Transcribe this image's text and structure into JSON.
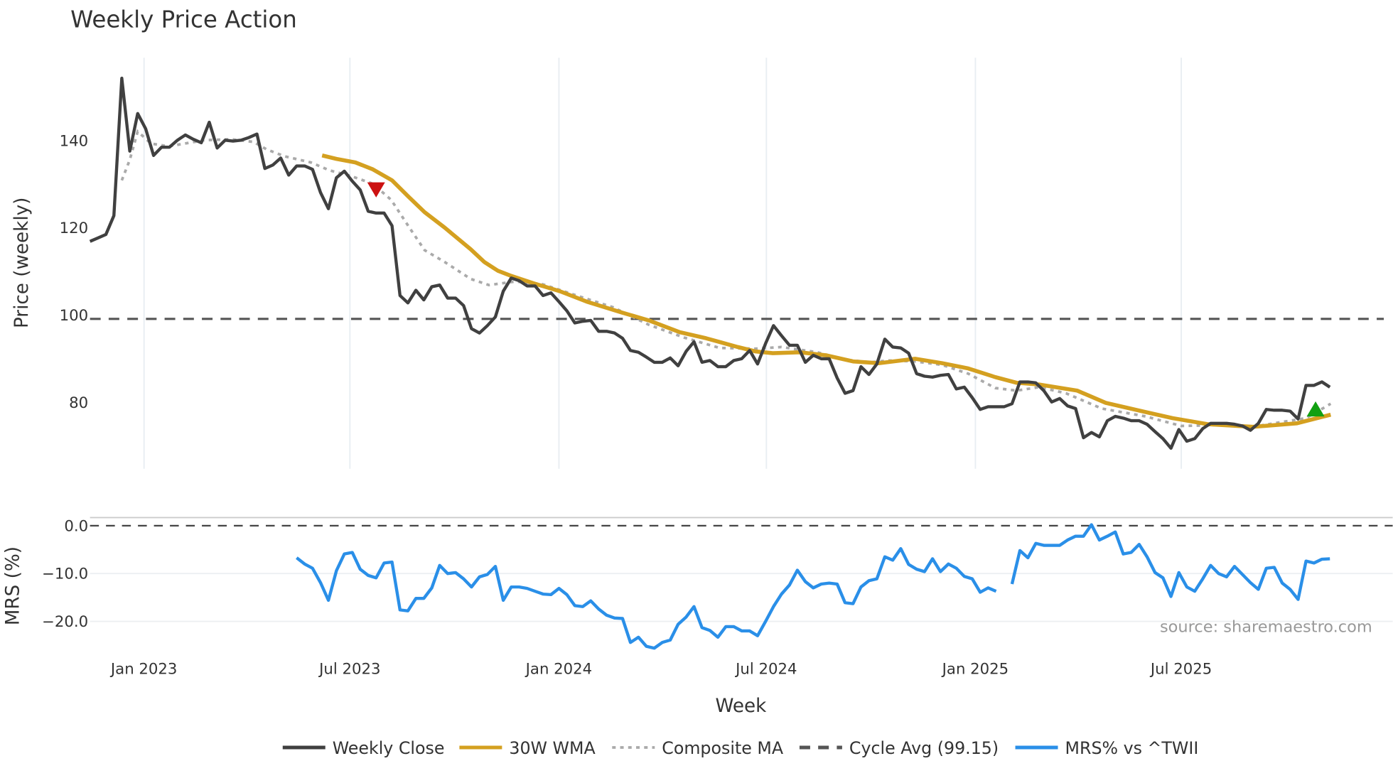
{
  "chart_data": [
    {
      "type": "line",
      "title": "Weekly Price Action",
      "xlabel": "Week",
      "ylabel": "Price (weekly)",
      "xlim_weeks": [
        0,
        163.9
      ],
      "ylim": [
        64.8,
        159
      ],
      "grid": true,
      "x_ticks": [
        {
          "week": 6.8,
          "label": "Jan 2023"
        },
        {
          "week": 32.7,
          "label": "Jul 2023"
        },
        {
          "week": 59.0,
          "label": "Jan 2024"
        },
        {
          "week": 85.1,
          "label": "Jul 2024"
        },
        {
          "week": 111.4,
          "label": "Jan 2025"
        },
        {
          "week": 137.3,
          "label": "Jul 2025"
        }
      ],
      "y_ticks": [
        {
          "value": 80,
          "label": "80"
        },
        {
          "value": 100,
          "label": "100"
        },
        {
          "value": 120,
          "label": "120"
        },
        {
          "value": 140,
          "label": "140"
        }
      ],
      "series": [
        {
          "name": "Weekly Close",
          "color": "#404040",
          "values": [
            116.9,
            117.7,
            118.5,
            122.8,
            154.3,
            137.6,
            146.2,
            142.7,
            136.6,
            138.5,
            138.5,
            140.1,
            141.3,
            140.3,
            139.5,
            144.2,
            138.3,
            140.1,
            139.9,
            140.1,
            140.7,
            141.5,
            133.6,
            134.4,
            136.0,
            132.1,
            134.2,
            134.2,
            133.4,
            128.1,
            124.4,
            131.5,
            133.0,
            130.7,
            128.7,
            123.8,
            123.4,
            123.4,
            120.5,
            104.5,
            102.8,
            105.7,
            103.5,
            106.5,
            106.9,
            103.9,
            103.9,
            102.2,
            96.9,
            95.9,
            97.6,
            99.6,
            105.5,
            108.5,
            107.9,
            106.7,
            106.7,
            104.5,
            105.1,
            103.1,
            101.0,
            98.2,
            98.6,
            98.8,
            96.3,
            96.3,
            95.9,
            94.7,
            91.9,
            91.5,
            90.4,
            89.2,
            89.2,
            90.2,
            88.4,
            91.7,
            93.9,
            89.2,
            89.6,
            88.2,
            88.2,
            89.6,
            90.0,
            91.9,
            88.8,
            93.5,
            97.6,
            95.3,
            93.1,
            93.1,
            89.2,
            90.8,
            90.0,
            90.0,
            85.6,
            82.1,
            82.7,
            88.2,
            86.4,
            88.8,
            94.5,
            92.7,
            92.5,
            91.3,
            86.6,
            86.0,
            85.8,
            86.2,
            86.4,
            83.1,
            83.5,
            81.1,
            78.4,
            79.0,
            79.0,
            79.0,
            79.7,
            84.7,
            84.7,
            84.5,
            82.7,
            80.1,
            80.9,
            79.2,
            78.6,
            71.9,
            73.1,
            72.1,
            75.8,
            76.8,
            76.4,
            75.8,
            75.8,
            75.0,
            73.3,
            71.7,
            69.5,
            73.8,
            71.1,
            71.7,
            74.0,
            75.2,
            75.2,
            75.2,
            75.0,
            74.6,
            73.6,
            75.2,
            78.4,
            78.2,
            78.2,
            78.0,
            76.2,
            83.9,
            83.9,
            84.7,
            83.5
          ]
        },
        {
          "name": "30W WMA",
          "color": "#D4A020",
          "points": [
            [
              29.2,
              136.6
            ],
            [
              31,
              135.8
            ],
            [
              33.4,
              135.0
            ],
            [
              35.6,
              133.4
            ],
            [
              38,
              130.9
            ],
            [
              40.1,
              127.1
            ],
            [
              42.1,
              123.6
            ],
            [
              44.6,
              120.1
            ],
            [
              47.9,
              115.1
            ],
            [
              49.6,
              112.2
            ],
            [
              51.3,
              110.2
            ],
            [
              53,
              109.0
            ],
            [
              55.8,
              107.3
            ],
            [
              59.1,
              105.5
            ],
            [
              62.5,
              103.1
            ],
            [
              66.9,
              100.6
            ],
            [
              70.3,
              98.8
            ],
            [
              74.2,
              96.1
            ],
            [
              77.5,
              94.7
            ],
            [
              81.5,
              92.7
            ],
            [
              83.7,
              91.7
            ],
            [
              85.9,
              91.3
            ],
            [
              89.3,
              91.5
            ],
            [
              92.6,
              90.8
            ],
            [
              96,
              89.4
            ],
            [
              99.3,
              89.0
            ],
            [
              103.8,
              90.0
            ],
            [
              107.2,
              89.0
            ],
            [
              110.5,
              87.8
            ],
            [
              113.9,
              85.8
            ],
            [
              116.6,
              84.5
            ],
            [
              119.4,
              84.1
            ],
            [
              124.2,
              82.7
            ],
            [
              127.8,
              79.9
            ],
            [
              132.8,
              77.8
            ],
            [
              136.2,
              76.4
            ],
            [
              140.7,
              75.0
            ],
            [
              146.3,
              74.4
            ],
            [
              151.8,
              75.2
            ],
            [
              156.1,
              77.2
            ]
          ]
        },
        {
          "name": "Composite MA",
          "color": "#AAAAAA",
          "points": [
            [
              4,
              130.9
            ],
            [
              5,
              135.6
            ],
            [
              6,
              142.1
            ],
            [
              7.7,
              139.3
            ],
            [
              9.9,
              138.7
            ],
            [
              14.4,
              140.1
            ],
            [
              17.8,
              140.3
            ],
            [
              20.6,
              139.7
            ],
            [
              22.2,
              138.0
            ],
            [
              24.5,
              136.4
            ],
            [
              27.8,
              135.0
            ],
            [
              30.1,
              133.2
            ],
            [
              32.8,
              131.9
            ],
            [
              35.6,
              130.1
            ],
            [
              37.9,
              126.4
            ],
            [
              40.1,
              120.3
            ],
            [
              42.1,
              114.9
            ],
            [
              44.6,
              112.2
            ],
            [
              47.9,
              108.3
            ],
            [
              50.2,
              106.9
            ],
            [
              53.5,
              107.7
            ],
            [
              56.9,
              107.1
            ],
            [
              60.2,
              105.1
            ],
            [
              65.8,
              101.8
            ],
            [
              70.3,
              97.8
            ],
            [
              74.7,
              94.9
            ],
            [
              79.2,
              92.5
            ],
            [
              83.7,
              92.3
            ],
            [
              87,
              92.7
            ],
            [
              91.5,
              91.5
            ],
            [
              94.9,
              89.8
            ],
            [
              98.2,
              89.2
            ],
            [
              100.4,
              89.6
            ],
            [
              103.8,
              89.4
            ],
            [
              107.2,
              88.6
            ],
            [
              110.5,
              86.6
            ],
            [
              113.9,
              83.3
            ],
            [
              116.6,
              82.7
            ],
            [
              119.4,
              83.5
            ],
            [
              122.8,
              82.1
            ],
            [
              127.3,
              78.6
            ],
            [
              132.8,
              76.8
            ],
            [
              137.3,
              74.6
            ],
            [
              141.8,
              74.8
            ],
            [
              146.3,
              74.4
            ],
            [
              149.6,
              75.4
            ],
            [
              153,
              76.4
            ],
            [
              156.1,
              79.7
            ]
          ]
        },
        {
          "name": "Cycle Avg (99.15)",
          "color": "#555555",
          "value": 99.15
        }
      ],
      "markers": [
        {
          "type": "sell",
          "shape": "triangle-down",
          "color": "#CC1111",
          "week": 36,
          "value": 128.8
        },
        {
          "type": "buy",
          "shape": "triangle-up",
          "color": "#11A011",
          "week": 154.2,
          "value": 78.4
        }
      ]
    },
    {
      "type": "line",
      "ylabel": "MRS (%)",
      "ylim": [
        -26.5,
        1.7
      ],
      "y_ticks": [
        {
          "value": 0,
          "label": "0.0"
        },
        {
          "value": -10,
          "label": "−10.0"
        },
        {
          "value": -20,
          "label": "−20.0"
        }
      ],
      "zero_line": 0,
      "series": [
        {
          "name": "MRS% vs ^TWII",
          "color": "#2A8FE8",
          "start_week": 26,
          "values": [
            -6.7,
            -8.0,
            -8.9,
            -11.9,
            -15.6,
            -9.4,
            -5.9,
            -5.6,
            -9.1,
            -10.4,
            -10.9,
            -7.8,
            -7.6,
            -17.6,
            -17.8,
            -15.2,
            -15.2,
            -13.0,
            -8.3,
            -10.0,
            -9.8,
            -11.1,
            -12.8,
            -10.7,
            -10.2,
            -8.5,
            -15.6,
            -12.8,
            -12.8,
            -13.1,
            -13.7,
            -14.3,
            -14.4,
            -13.1,
            -14.4,
            -16.7,
            -16.9,
            -15.7,
            -17.4,
            -18.7,
            -19.3,
            -19.4,
            -24.4,
            -23.3,
            -25.2,
            -25.6,
            -24.4,
            -23.9,
            -20.6,
            -19.1,
            -16.9,
            -21.3,
            -21.9,
            -23.3,
            -21.1,
            -21.1,
            -22.0,
            -22.0,
            -23.0,
            -20.0,
            -16.9,
            -14.3,
            -12.4,
            -9.3,
            -11.7,
            -13.0,
            -12.2,
            -12.0,
            -12.2,
            -16.1,
            -16.3,
            -12.8,
            -11.5,
            -11.1,
            -6.5,
            -7.2,
            -4.8,
            -8.1,
            -9.1,
            -9.6,
            -6.9,
            -9.6,
            -8.0,
            -8.9,
            -10.6,
            -11.1,
            -13.9,
            -13.0,
            -13.7,
            null,
            -12.2,
            -5.2,
            -6.7,
            -3.7,
            -4.1,
            -4.1,
            -4.1,
            -3.0,
            -2.2,
            -2.2,
            0.2,
            -3.0,
            -2.2,
            -1.3,
            -5.9,
            -5.6,
            -3.9,
            -6.5,
            -9.8,
            -10.9,
            -14.8,
            -9.8,
            -12.8,
            -13.7,
            -11.1,
            -8.3,
            -10.0,
            -10.7,
            -8.5,
            -10.2,
            -11.9,
            -13.3,
            -8.9,
            -8.7,
            -12.0,
            -13.3,
            -15.4,
            -7.4,
            -7.8,
            -7.0,
            -6.9
          ]
        }
      ]
    }
  ],
  "legend": {
    "placement": "bottom",
    "items": [
      "Weekly Close",
      "30W WMA",
      "Composite MA",
      "Cycle Avg (99.15)",
      "MRS% vs ^TWII"
    ]
  },
  "source": "source: sharemaestro.com"
}
